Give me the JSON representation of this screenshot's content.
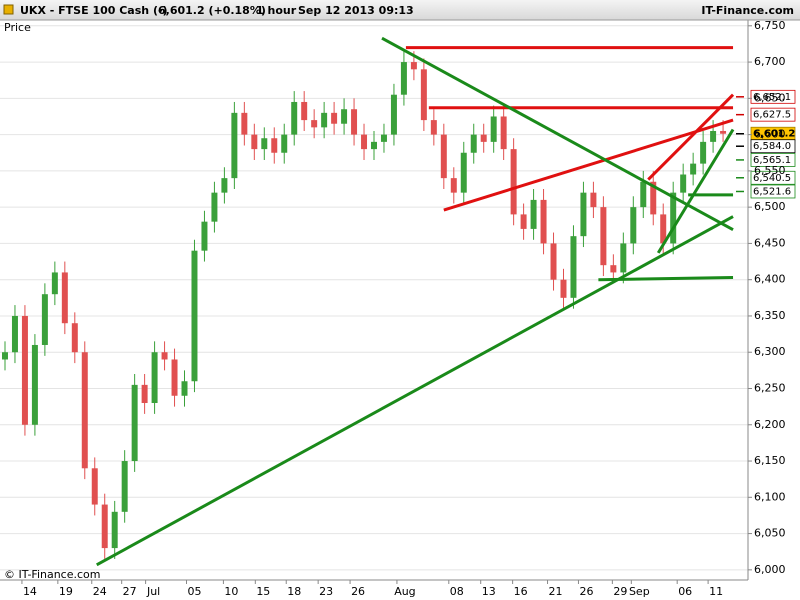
{
  "header": {
    "symbol": "UKX - FTSE 100 Cash (-)",
    "quote": "6,601.2 (+0.18%)",
    "interval": "1 hour",
    "timestamp": "Sep 12 2013 09:13",
    "brand": "IT-Finance.com"
  },
  "chart_data": {
    "type": "candlestick",
    "y_label": "Price",
    "copyright": "© IT-Finance.com",
    "up_color": "#3aa03a",
    "down_color": "#e05050",
    "grid": true,
    "open": [
      6290,
      6300,
      6350,
      6200,
      6310,
      6380,
      6410,
      6340,
      6300,
      6140,
      6090,
      6030,
      6080,
      6150,
      6255,
      6230,
      6300,
      6290,
      6240,
      6260,
      6440,
      6480,
      6520,
      6540,
      6630,
      6600,
      6580,
      6595,
      6575,
      6600,
      6645,
      6620,
      6610,
      6630,
      6615,
      6635,
      6600,
      6580,
      6590,
      6600,
      6655,
      6700,
      6690,
      6620,
      6600,
      6540,
      6520,
      6575,
      6600,
      6590,
      6625,
      6580,
      6490,
      6470,
      6510,
      6450,
      6400,
      6375,
      6460,
      6520,
      6500,
      6420,
      6410,
      6450,
      6500,
      6535,
      6490,
      6450,
      6520,
      6545,
      6560,
      6590,
      6605
    ],
    "high": [
      6315,
      6365,
      6365,
      6325,
      6395,
      6425,
      6425,
      6355,
      6315,
      6155,
      6105,
      6095,
      6165,
      6270,
      6270,
      6315,
      6315,
      6305,
      6275,
      6455,
      6495,
      6535,
      6555,
      6645,
      6645,
      6615,
      6610,
      6610,
      6615,
      6660,
      6660,
      6635,
      6645,
      6645,
      6650,
      6650,
      6615,
      6605,
      6615,
      6670,
      6715,
      6715,
      6705,
      6635,
      6615,
      6555,
      6590,
      6615,
      6615,
      6640,
      6640,
      6595,
      6505,
      6525,
      6525,
      6465,
      6415,
      6475,
      6535,
      6535,
      6515,
      6435,
      6465,
      6515,
      6550,
      6550,
      6505,
      6535,
      6560,
      6575,
      6605,
      6620,
      6620
    ],
    "low": [
      6275,
      6285,
      6185,
      6185,
      6295,
      6365,
      6325,
      6285,
      6125,
      6075,
      6015,
      6015,
      6065,
      6135,
      6215,
      6215,
      6275,
      6225,
      6225,
      6245,
      6425,
      6465,
      6505,
      6525,
      6585,
      6565,
      6565,
      6560,
      6560,
      6585,
      6605,
      6595,
      6595,
      6600,
      6600,
      6585,
      6565,
      6565,
      6575,
      6585,
      6640,
      6675,
      6605,
      6585,
      6525,
      6505,
      6505,
      6560,
      6575,
      6575,
      6565,
      6475,
      6455,
      6455,
      6435,
      6385,
      6360,
      6360,
      6445,
      6485,
      6405,
      6395,
      6395,
      6435,
      6485,
      6475,
      6435,
      6435,
      6505,
      6530,
      6545,
      6575,
      6590
    ],
    "close": [
      6300,
      6350,
      6200,
      6310,
      6380,
      6410,
      6340,
      6300,
      6140,
      6090,
      6030,
      6080,
      6150,
      6255,
      6230,
      6300,
      6290,
      6240,
      6260,
      6440,
      6480,
      6520,
      6540,
      6630,
      6600,
      6580,
      6595,
      6575,
      6600,
      6645,
      6620,
      6610,
      6630,
      6615,
      6635,
      6600,
      6580,
      6590,
      6600,
      6655,
      6700,
      6690,
      6620,
      6600,
      6540,
      6520,
      6575,
      6600,
      6590,
      6625,
      6580,
      6490,
      6470,
      6510,
      6450,
      6400,
      6375,
      6460,
      6520,
      6500,
      6420,
      6410,
      6450,
      6500,
      6535,
      6490,
      6450,
      6520,
      6545,
      6560,
      6590,
      6605,
      6601.2
    ],
    "xlim": [
      0,
      75
    ],
    "xticks": [
      {
        "value": 2.2,
        "label": "14"
      },
      {
        "value": 5.8,
        "label": "19"
      },
      {
        "value": 9.2,
        "label": "24"
      },
      {
        "value": 12.2,
        "label": "27"
      },
      {
        "value": 14.6,
        "label": "Jul"
      },
      {
        "value": 18.7,
        "label": "05"
      },
      {
        "value": 22.4,
        "label": "10"
      },
      {
        "value": 25.6,
        "label": "15"
      },
      {
        "value": 28.7,
        "label": "18"
      },
      {
        "value": 31.9,
        "label": "23"
      },
      {
        "value": 35.1,
        "label": "26"
      },
      {
        "value": 39.8,
        "label": "Aug"
      },
      {
        "value": 45.0,
        "label": "08"
      },
      {
        "value": 48.2,
        "label": "13"
      },
      {
        "value": 51.4,
        "label": "16"
      },
      {
        "value": 54.9,
        "label": "21"
      },
      {
        "value": 58.0,
        "label": "26"
      },
      {
        "value": 61.4,
        "label": "29"
      },
      {
        "value": 63.3,
        "label": "Sep"
      },
      {
        "value": 67.9,
        "label": "06"
      },
      {
        "value": 71.0,
        "label": "11"
      }
    ],
    "ylim": [
      5986,
      6758
    ],
    "yticks": [
      {
        "value": 6000,
        "label": "6,000"
      },
      {
        "value": 6050,
        "label": "6,050"
      },
      {
        "value": 6100,
        "label": "6,100"
      },
      {
        "value": 6150,
        "label": "6,150"
      },
      {
        "value": 6200,
        "label": "6,200"
      },
      {
        "value": 6250,
        "label": "6,250"
      },
      {
        "value": 6300,
        "label": "6,300"
      },
      {
        "value": 6350,
        "label": "6,350"
      },
      {
        "value": 6400,
        "label": "6,400"
      },
      {
        "value": 6450,
        "label": "6,450"
      },
      {
        "value": 6500,
        "label": "6,500"
      },
      {
        "value": 6550,
        "label": "6,550"
      },
      {
        "value": 6600,
        "label": "6,600"
      },
      {
        "value": 6650,
        "label": "6,650"
      },
      {
        "value": 6700,
        "label": "6,700"
      },
      {
        "value": 6750,
        "label": "6,750"
      }
    ],
    "trendlines": [
      {
        "color": "#e01010",
        "x": [
          40.7,
          73.5
        ],
        "y": [
          6720,
          6720
        ]
      },
      {
        "color": "#e01010",
        "x": [
          43.0,
          73.5
        ],
        "y": [
          6637,
          6637
        ]
      },
      {
        "color": "#e01010",
        "x": [
          44.5,
          73.5
        ],
        "y": [
          6496,
          6620
        ]
      },
      {
        "color": "#e01010",
        "x": [
          65.0,
          73.5
        ],
        "y": [
          6538,
          6655
        ]
      },
      {
        "color": "#1a8a1a",
        "x": [
          38.3,
          73.5
        ],
        "y": [
          6733,
          6469
        ]
      },
      {
        "color": "#1a8a1a",
        "x": [
          9.7,
          73.5
        ],
        "y": [
          6007,
          6487
        ]
      },
      {
        "color": "#1a8a1a",
        "x": [
          60.0,
          73.5
        ],
        "y": [
          6400,
          6403
        ]
      },
      {
        "color": "#1a8a1a",
        "x": [
          66.0,
          73.5
        ],
        "y": [
          6437,
          6607
        ]
      },
      {
        "color": "#1a8a1a",
        "x": [
          69.0,
          73.5
        ],
        "y": [
          6517,
          6517
        ]
      }
    ],
    "price_labels": [
      {
        "value": 6652.1,
        "label": "6,652.1",
        "color": "#d00000"
      },
      {
        "value": 6627.5,
        "label": "6,627.5",
        "color": "#d00000"
      },
      {
        "value": 6601.2,
        "label": "6,601.2",
        "color": "#000000",
        "background": "#ffc400"
      },
      {
        "value": 6584.0,
        "label": "6,584.0",
        "color": "#000000"
      },
      {
        "value": 6565.1,
        "label": "6,565.1",
        "color": "#1a8a1a"
      },
      {
        "value": 6540.5,
        "label": "6,540.5",
        "color": "#1a8a1a"
      },
      {
        "value": 6521.6,
        "label": "6,521.6",
        "color": "#1a8a1a"
      }
    ]
  }
}
